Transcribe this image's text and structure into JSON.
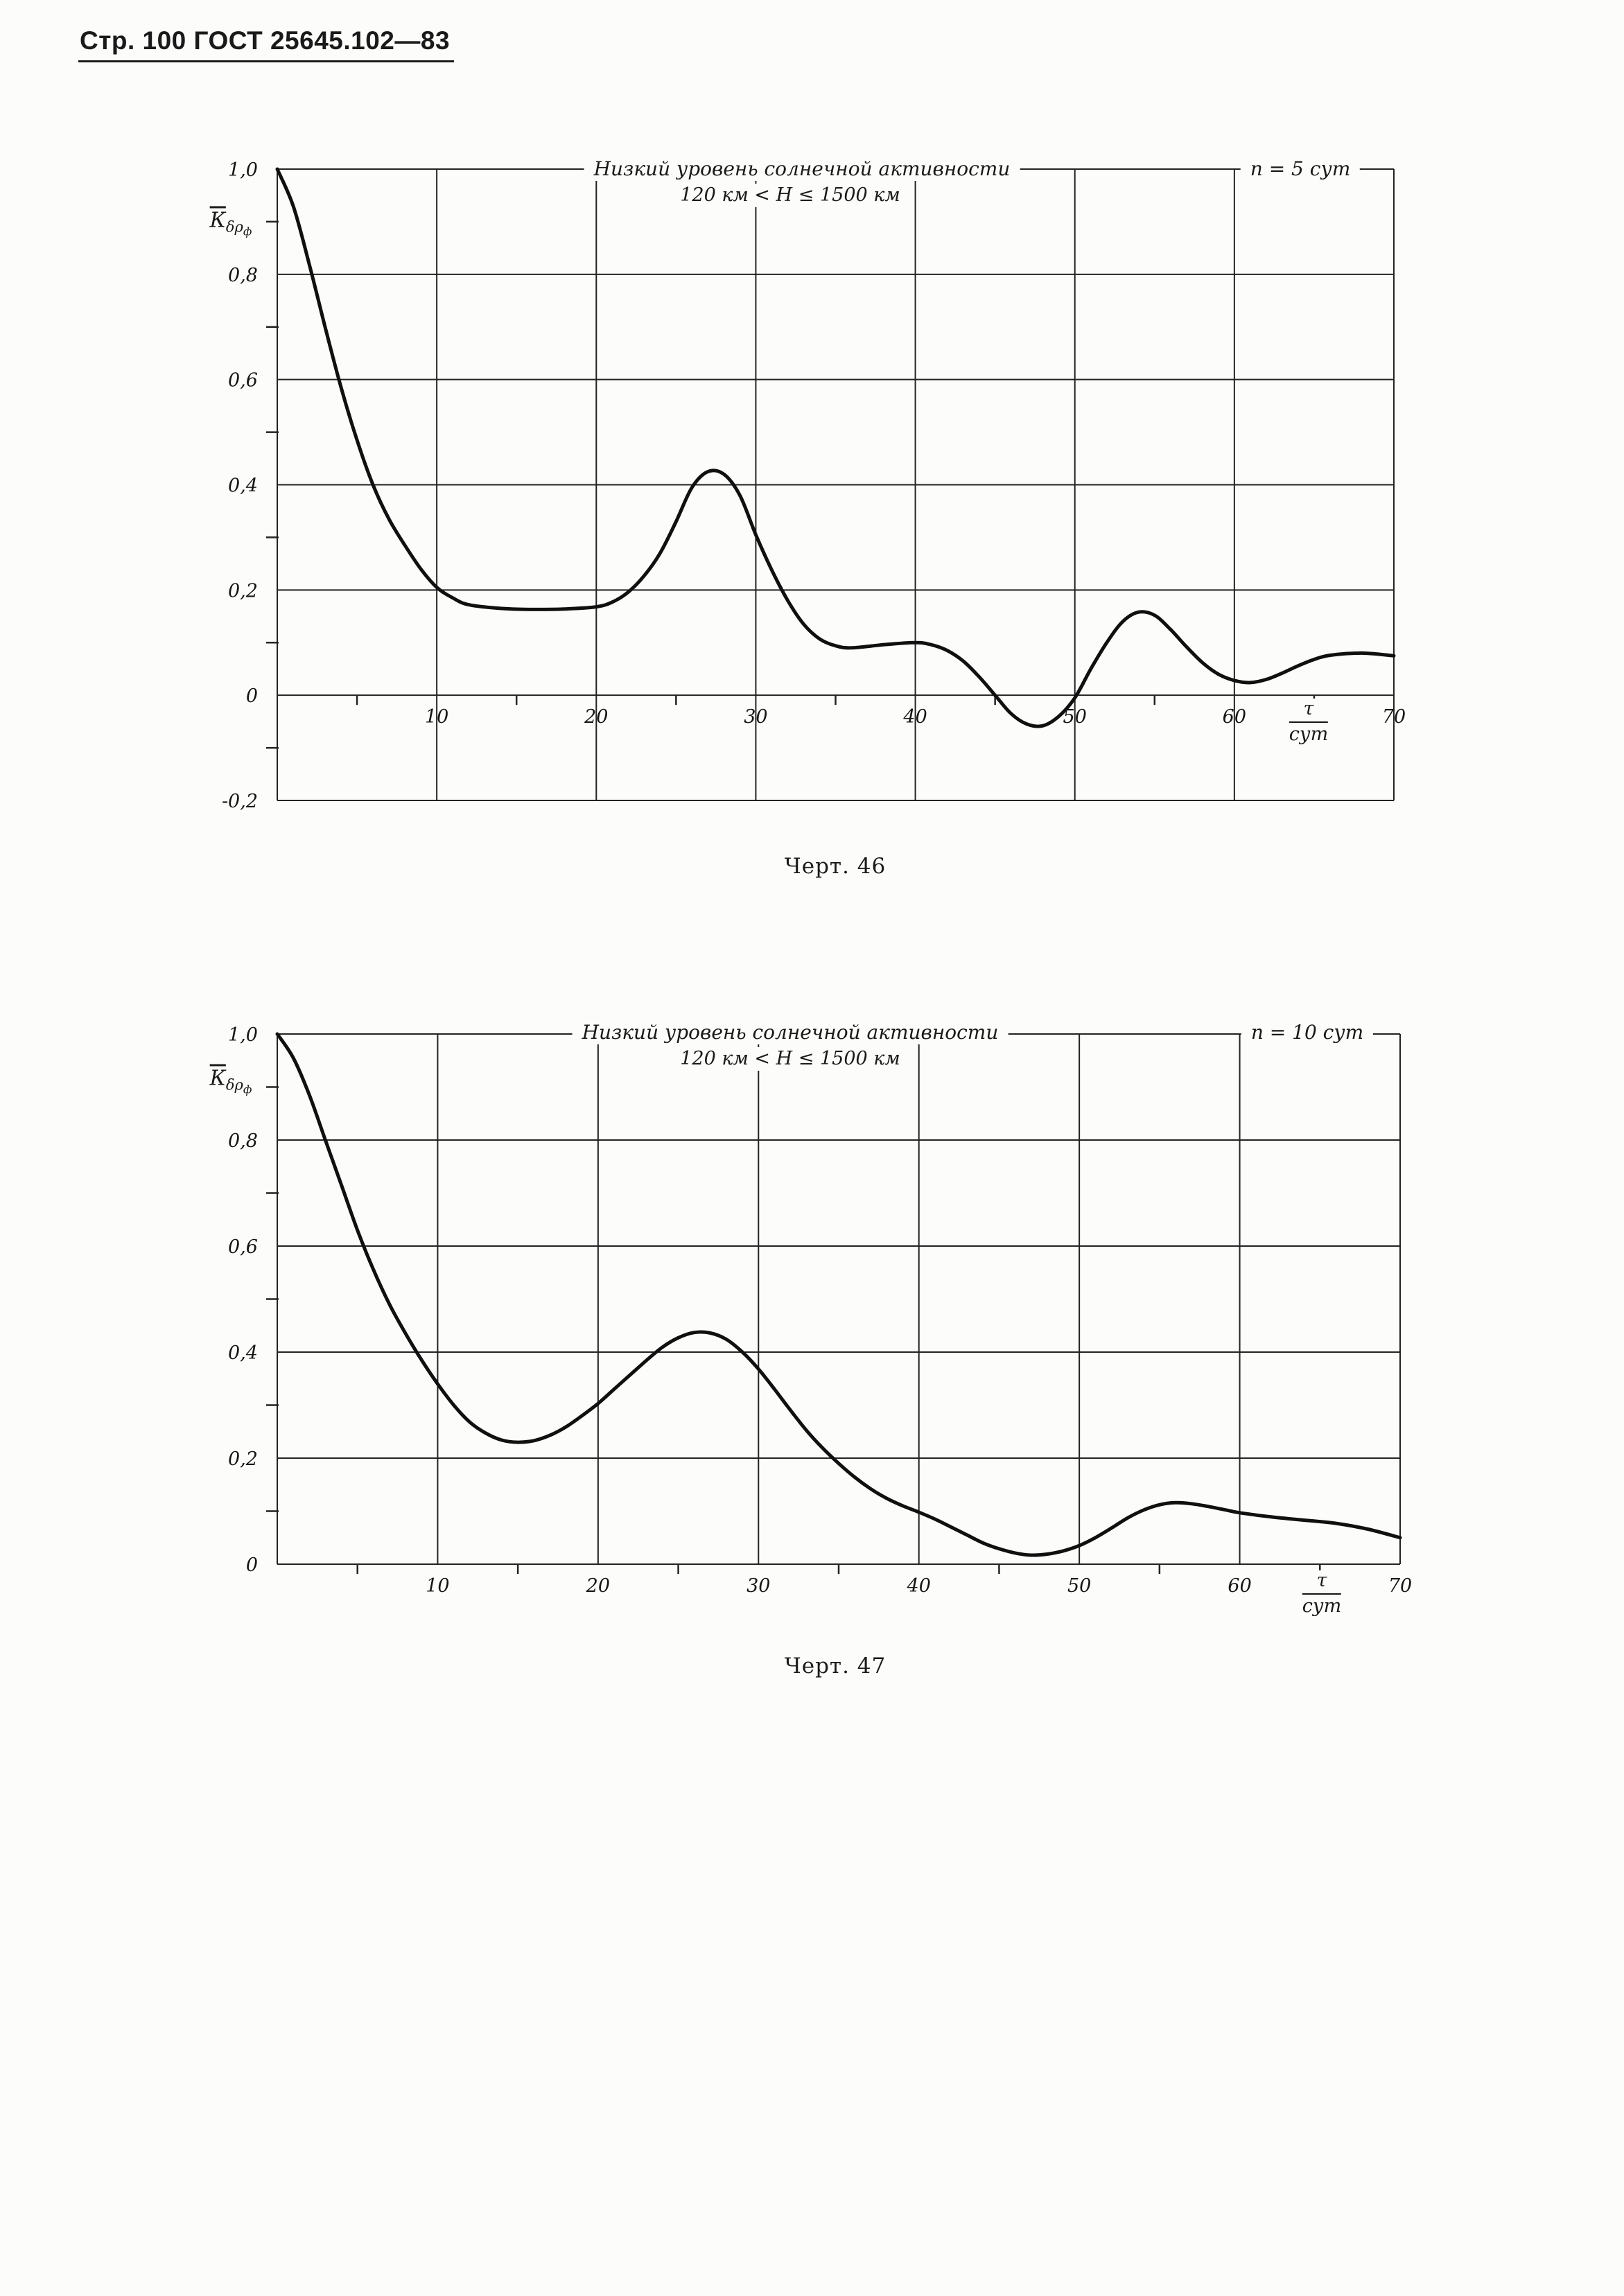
{
  "page": {
    "header": "Стр. 100 ГОСТ 25645.102—83"
  },
  "chart_data": [
    {
      "type": "line",
      "title": "Низкий уровень солнечной активности",
      "subtitle": "120 км < H ≤ 1500 км",
      "corner_label": "n = 5 сут",
      "caption": "Черт. 46",
      "ylabel": "К̄δρф",
      "ylabel_main": "К",
      "ylabel_sub": "δρ",
      "ylabel_subsub": "ф",
      "xlabel": "τ/сут",
      "xlabel_num": "τ",
      "xlabel_den": "сут",
      "xlim": [
        0,
        70
      ],
      "ylim": [
        -0.2,
        1.0
      ],
      "xticks": [
        10,
        20,
        30,
        40,
        50,
        60,
        70
      ],
      "yticks": [
        -0.2,
        0,
        0.2,
        0.4,
        0.6,
        0.8,
        1.0
      ],
      "ytick_labels": [
        "-0,2",
        "0",
        "0,2",
        "0,4",
        "0,6",
        "0,8",
        "1,0"
      ],
      "grid": true,
      "x": [
        0,
        1,
        2,
        3,
        4,
        5,
        6,
        7,
        8,
        9,
        10,
        11,
        12,
        14,
        16,
        18,
        20,
        21,
        22,
        23,
        24,
        25,
        26,
        27,
        28,
        29,
        30,
        31,
        32,
        33,
        34,
        35,
        36,
        38,
        40,
        41,
        42,
        43,
        44,
        45,
        46,
        47,
        48,
        49,
        50,
        51,
        52,
        53,
        54,
        55,
        56,
        57,
        58,
        59,
        60,
        61,
        62,
        63,
        64,
        65,
        66,
        68,
        70
      ],
      "y": [
        1.0,
        0.93,
        0.82,
        0.7,
        0.585,
        0.485,
        0.4,
        0.335,
        0.285,
        0.24,
        0.205,
        0.185,
        0.172,
        0.165,
        0.163,
        0.164,
        0.168,
        0.177,
        0.196,
        0.227,
        0.27,
        0.33,
        0.395,
        0.425,
        0.42,
        0.38,
        0.305,
        0.238,
        0.18,
        0.135,
        0.107,
        0.094,
        0.09,
        0.096,
        0.1,
        0.096,
        0.085,
        0.065,
        0.035,
        0.0,
        -0.035,
        -0.055,
        -0.058,
        -0.04,
        -0.005,
        0.05,
        0.1,
        0.14,
        0.158,
        0.152,
        0.125,
        0.092,
        0.062,
        0.04,
        0.028,
        0.024,
        0.03,
        0.042,
        0.056,
        0.068,
        0.076,
        0.08,
        0.075
      ]
    },
    {
      "type": "line",
      "title": "Низкий уровень солнечной активности",
      "subtitle": "120 км < H ≤ 1500 км",
      "corner_label": "n = 10 сут",
      "caption": "Черт. 47",
      "ylabel": "К̄δρф",
      "ylabel_main": "К",
      "ylabel_sub": "δρ",
      "ylabel_subsub": "ф",
      "xlabel": "τ/сут",
      "xlabel_num": "τ",
      "xlabel_den": "сут",
      "xlim": [
        0,
        70
      ],
      "ylim": [
        0,
        1.0
      ],
      "xticks": [
        10,
        20,
        30,
        40,
        50,
        60,
        70
      ],
      "yticks": [
        0,
        0.2,
        0.4,
        0.6,
        0.8,
        1.0
      ],
      "ytick_labels": [
        "0",
        "0,2",
        "0,4",
        "0,6",
        "0,8",
        "1,0"
      ],
      "grid": true,
      "x": [
        0,
        1,
        2,
        3,
        4,
        5,
        6,
        7,
        8,
        9,
        10,
        11,
        12,
        13,
        14,
        15,
        16,
        17,
        18,
        19,
        20,
        21,
        22,
        23,
        24,
        25,
        26,
        27,
        28,
        29,
        30,
        31,
        32,
        33,
        34,
        35,
        36,
        37,
        38,
        39,
        40,
        41,
        42,
        43,
        44,
        45,
        46,
        47,
        48,
        49,
        50,
        51,
        52,
        53,
        54,
        55,
        56,
        57,
        58,
        59,
        60,
        62,
        64,
        66,
        68,
        70
      ],
      "y": [
        1.0,
        0.955,
        0.885,
        0.8,
        0.715,
        0.63,
        0.555,
        0.49,
        0.435,
        0.385,
        0.34,
        0.3,
        0.268,
        0.247,
        0.234,
        0.23,
        0.233,
        0.243,
        0.259,
        0.28,
        0.303,
        0.33,
        0.357,
        0.384,
        0.409,
        0.427,
        0.437,
        0.436,
        0.424,
        0.4,
        0.368,
        0.33,
        0.29,
        0.252,
        0.219,
        0.19,
        0.164,
        0.142,
        0.124,
        0.11,
        0.098,
        0.085,
        0.07,
        0.055,
        0.04,
        0.029,
        0.021,
        0.017,
        0.019,
        0.025,
        0.035,
        0.05,
        0.068,
        0.087,
        0.102,
        0.112,
        0.116,
        0.114,
        0.109,
        0.103,
        0.097,
        0.089,
        0.083,
        0.077,
        0.066,
        0.05
      ]
    }
  ]
}
